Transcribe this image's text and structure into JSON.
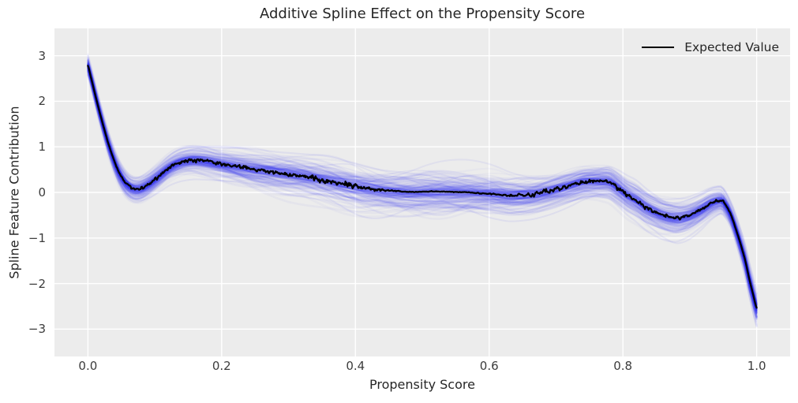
{
  "colors": {
    "figure_bg": "#ffffff",
    "axes_bg": "#ececec",
    "grid": "#ffffff",
    "title_text": "#262626",
    "tick_text": "#3c3c3c",
    "expected_line": "#000000",
    "band_blue": "#2222ee"
  },
  "legend": {
    "entries": [
      {
        "label": "Expected Value",
        "marker": "line",
        "color": "#000000"
      }
    ],
    "position": "upper right",
    "frame": false
  },
  "chart_data": {
    "type": "line",
    "title": "Additive Spline Effect on the Propensity Score",
    "xlabel": "Propensity Score",
    "ylabel": "Spline Feature Contribution",
    "xlim": [
      -0.05,
      1.05
    ],
    "ylim": [
      -3.6,
      3.6
    ],
    "grid": true,
    "legend_position": "upper right",
    "xticks": [
      {
        "v": 0.0,
        "label": "0.0"
      },
      {
        "v": 0.2,
        "label": "0.2"
      },
      {
        "v": 0.4,
        "label": "0.4"
      },
      {
        "v": 0.6,
        "label": "0.6"
      },
      {
        "v": 0.8,
        "label": "0.8"
      },
      {
        "v": 1.0,
        "label": "1.0"
      }
    ],
    "yticks": [
      {
        "v": 3,
        "label": "3"
      },
      {
        "v": 2,
        "label": "2"
      },
      {
        "v": 1,
        "label": "1"
      },
      {
        "v": 0,
        "label": "0"
      },
      {
        "v": -1,
        "label": "−1"
      },
      {
        "v": -2,
        "label": "−2"
      },
      {
        "v": -3,
        "label": "−3"
      }
    ],
    "series": [
      {
        "name": "Expected Value",
        "type": "line",
        "color": "#000000",
        "linewidth": 2.3,
        "x": [
          0.0,
          0.004,
          0.01,
          0.016,
          0.022,
          0.028,
          0.034,
          0.04,
          0.046,
          0.052,
          0.058,
          0.065,
          0.072,
          0.08,
          0.09,
          0.1,
          0.11,
          0.12,
          0.13,
          0.14,
          0.15,
          0.16,
          0.175,
          0.19,
          0.21,
          0.23,
          0.25,
          0.27,
          0.29,
          0.31,
          0.33,
          0.35,
          0.37,
          0.39,
          0.41,
          0.43,
          0.45,
          0.47,
          0.49,
          0.51,
          0.53,
          0.55,
          0.57,
          0.59,
          0.61,
          0.63,
          0.65,
          0.665,
          0.68,
          0.695,
          0.71,
          0.725,
          0.74,
          0.755,
          0.768,
          0.78,
          0.793,
          0.806,
          0.82,
          0.835,
          0.85,
          0.862,
          0.875,
          0.885,
          0.895,
          0.905,
          0.918,
          0.93,
          0.94,
          0.948,
          0.956,
          0.963,
          0.97,
          0.977,
          0.983,
          0.989,
          0.994,
          1.0
        ],
        "y": [
          2.78,
          2.55,
          2.2,
          1.85,
          1.52,
          1.2,
          0.92,
          0.67,
          0.46,
          0.3,
          0.18,
          0.1,
          0.07,
          0.09,
          0.17,
          0.28,
          0.4,
          0.52,
          0.61,
          0.67,
          0.7,
          0.71,
          0.69,
          0.65,
          0.6,
          0.55,
          0.5,
          0.46,
          0.42,
          0.38,
          0.33,
          0.28,
          0.22,
          0.16,
          0.11,
          0.07,
          0.04,
          0.02,
          0.01,
          0.02,
          0.02,
          0.01,
          0.0,
          -0.02,
          -0.04,
          -0.07,
          -0.06,
          -0.04,
          0.0,
          0.05,
          0.11,
          0.17,
          0.23,
          0.25,
          0.25,
          0.23,
          0.1,
          -0.05,
          -0.17,
          -0.33,
          -0.44,
          -0.51,
          -0.55,
          -0.55,
          -0.52,
          -0.46,
          -0.36,
          -0.25,
          -0.19,
          -0.18,
          -0.33,
          -0.55,
          -0.85,
          -1.18,
          -1.5,
          -1.9,
          -2.2,
          -2.53
        ]
      },
      {
        "name": "posterior spline samples",
        "type": "sample-band",
        "color": "#2222ee",
        "n_samples": 140,
        "n_core_samples": 45,
        "alpha": 0.035,
        "sigma_x": [
          0.0,
          0.02,
          0.05,
          0.08,
          0.12,
          0.16,
          0.2,
          0.25,
          0.3,
          0.4,
          0.5,
          0.6,
          0.7,
          0.76,
          0.82,
          0.88,
          0.93,
          0.96,
          1.0
        ],
        "sigma": [
          0.11,
          0.12,
          0.14,
          0.15,
          0.14,
          0.15,
          0.17,
          0.21,
          0.24,
          0.26,
          0.26,
          0.24,
          0.2,
          0.18,
          0.2,
          0.2,
          0.15,
          0.12,
          0.17
        ]
      }
    ],
    "noise_profile": {
      "x": [
        0.0,
        0.04,
        0.08,
        0.15,
        0.25,
        0.33,
        0.4,
        0.44,
        0.47,
        0.55,
        0.62,
        0.65,
        0.7,
        0.75,
        0.8,
        0.85,
        0.9,
        0.94,
        0.97,
        1.0
      ],
      "amp": [
        0.0,
        0.01,
        0.025,
        0.03,
        0.035,
        0.045,
        0.05,
        0.02,
        0.006,
        0.005,
        0.01,
        0.04,
        0.045,
        0.03,
        0.035,
        0.03,
        0.025,
        0.02,
        0.008,
        0.0
      ]
    }
  }
}
